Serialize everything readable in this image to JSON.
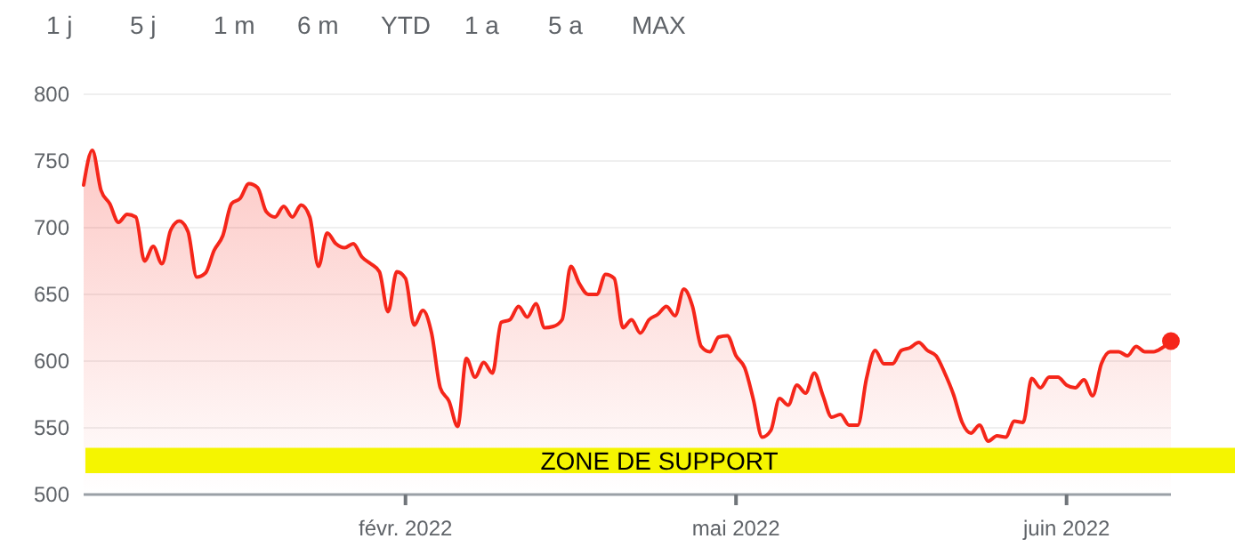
{
  "chart_data": {
    "type": "area",
    "annotations": [
      "1 j",
      "5 j",
      "1 m",
      "6 m",
      "YTD",
      "1 a",
      "5 a",
      "MAX"
    ],
    "categories": [
      null,
      null,
      null,
      null,
      null,
      null,
      null,
      null,
      null,
      null,
      null,
      null,
      null,
      null,
      null,
      null,
      null,
      null,
      null,
      null,
      null,
      null,
      null,
      null,
      null,
      null,
      null,
      null,
      null,
      null,
      null,
      null,
      null,
      null,
      null,
      null,
      null,
      "févr. 2022",
      null,
      null,
      null,
      null,
      null,
      null,
      null,
      null,
      null,
      null,
      null,
      null,
      null,
      null,
      null,
      null,
      null,
      null,
      null,
      null,
      null,
      null,
      null,
      null,
      null,
      null,
      null,
      null,
      null,
      null,
      null,
      null,
      null,
      null,
      null,
      null,
      null,
      "mai 2022",
      null,
      null,
      null,
      null,
      null,
      null,
      null,
      null,
      null,
      null,
      null,
      null,
      null,
      null,
      null,
      null,
      null,
      null,
      null,
      null,
      null,
      null,
      null,
      null,
      null,
      null,
      null,
      null,
      null,
      null,
      null,
      null,
      null,
      null,
      null,
      null,
      null,
      "juin 2022",
      null,
      null,
      null,
      null,
      null,
      null,
      null,
      null,
      null,
      null,
      null,
      null
    ],
    "series": [
      {
        "color": "#f5261a",
        "values": [
          732,
          758,
          728,
          718,
          704,
          710,
          708,
          675,
          686,
          673,
          698,
          705,
          697,
          663,
          666,
          683,
          694,
          718,
          722,
          733,
          730,
          712,
          708,
          716,
          708,
          717,
          708,
          671,
          696,
          688,
          685,
          688,
          678,
          673,
          667,
          637,
          667,
          662,
          627,
          638,
          621,
          580,
          570,
          551,
          602,
          588,
          599,
          591,
          629,
          631,
          641,
          633,
          643,
          625,
          626,
          631,
          671,
          658,
          650,
          650,
          665,
          662,
          625,
          631,
          621,
          631,
          635,
          641,
          634,
          654,
          641,
          611,
          607,
          618,
          619,
          604,
          595,
          571,
          543,
          548,
          572,
          567,
          582,
          576,
          591,
          574,
          558,
          560,
          552,
          552,
          587,
          608,
          598,
          598,
          608,
          610,
          614,
          608,
          604,
          591,
          575,
          554,
          546,
          552,
          540,
          544,
          543,
          555,
          554,
          587,
          580,
          588,
          588,
          582,
          580,
          586,
          574,
          598,
          607,
          607,
          604,
          611,
          607,
          607,
          610,
          615
        ]
      },
      {
        "type": "scatter",
        "color": "#f5261a",
        "marker": "circle",
        "values": [
          null,
          null,
          null,
          null,
          null,
          null,
          null,
          null,
          null,
          null,
          null,
          null,
          null,
          null,
          null,
          null,
          null,
          null,
          null,
          null,
          null,
          null,
          null,
          null,
          null,
          null,
          null,
          null,
          null,
          null,
          null,
          null,
          null,
          null,
          null,
          null,
          null,
          null,
          null,
          null,
          null,
          null,
          null,
          null,
          null,
          null,
          null,
          null,
          null,
          null,
          null,
          null,
          null,
          null,
          null,
          null,
          null,
          null,
          null,
          null,
          null,
          null,
          null,
          null,
          null,
          null,
          null,
          null,
          null,
          null,
          null,
          null,
          null,
          null,
          null,
          null,
          null,
          null,
          null,
          null,
          null,
          null,
          null,
          null,
          null,
          null,
          null,
          null,
          null,
          null,
          null,
          null,
          null,
          null,
          null,
          null,
          null,
          null,
          null,
          null,
          null,
          null,
          null,
          null,
          null,
          null,
          null,
          null,
          null,
          null,
          null,
          null,
          null,
          null,
          null,
          null,
          null,
          null,
          null,
          null,
          null,
          null,
          null,
          null,
          null,
          615
        ]
      }
    ],
    "ylim": [
      500,
      800
    ],
    "yticks": [
      500,
      550,
      600,
      650,
      700,
      750,
      800
    ],
    "grid": "y",
    "bands": [
      {
        "axis": "y",
        "from": 516,
        "to": 535,
        "label": "ZONE DE SUPPORT",
        "color": "#f5f500"
      }
    ]
  }
}
